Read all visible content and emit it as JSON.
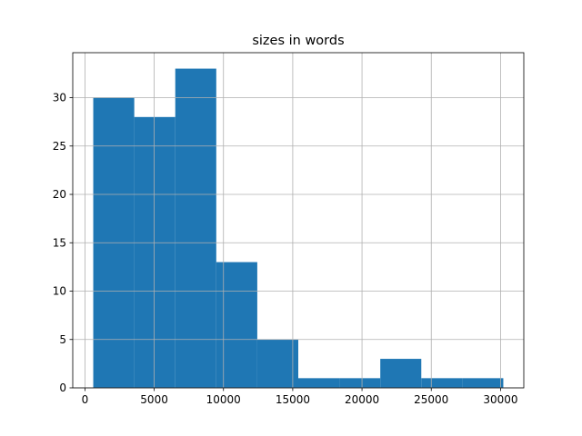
{
  "chart_data": {
    "type": "histogram",
    "title": "sizes in words",
    "bins": [
      600,
      3560,
      6520,
      9480,
      12440,
      15400,
      18360,
      21320,
      24280,
      27240,
      30200
    ],
    "values": [
      30,
      28,
      33,
      13,
      5,
      1,
      1,
      3,
      1,
      1
    ],
    "color": "#1f77b4",
    "xlim": [
      -880,
      31680
    ],
    "xticks": [
      0,
      5000,
      10000,
      15000,
      20000,
      25000,
      30000
    ],
    "ylim": [
      0,
      34.65
    ],
    "yticks": [
      0,
      5,
      10,
      15,
      20,
      25,
      30
    ],
    "grid": true
  }
}
